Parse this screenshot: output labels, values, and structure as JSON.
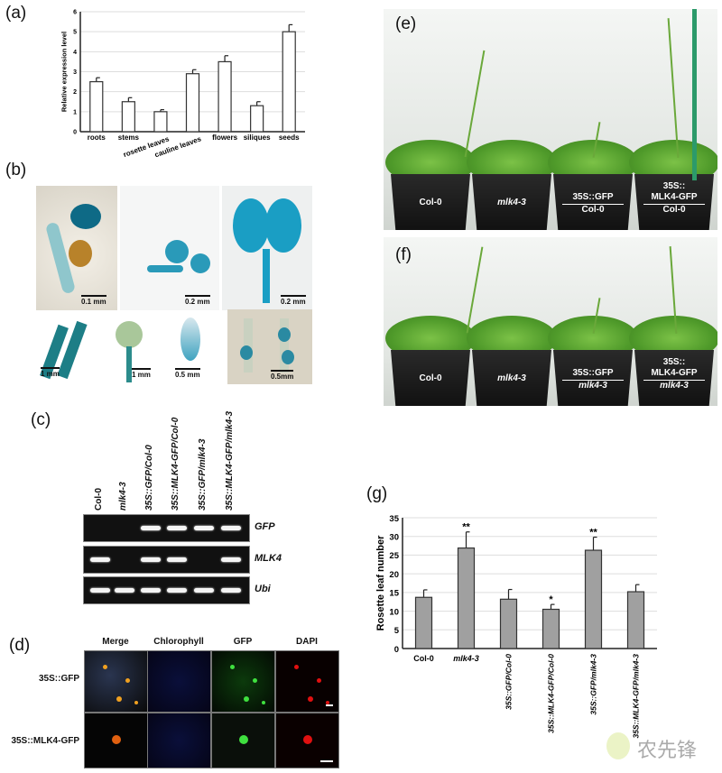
{
  "panels": {
    "a": "(a)",
    "b": "(b)",
    "c": "(c)",
    "d": "(d)",
    "e": "(e)",
    "f": "(f)",
    "g": "(g)"
  },
  "chart_data": [
    {
      "type": "bar",
      "panel": "a",
      "ylabel": "Relative expression level",
      "xlabel": "",
      "categories": [
        "roots",
        "stems",
        "rosette leaves",
        "cauline leaves",
        "flowers",
        "siliques",
        "seeds"
      ],
      "values": [
        2.5,
        1.5,
        1.0,
        2.9,
        3.5,
        1.3,
        5.0
      ],
      "errors": [
        0.2,
        0.2,
        0.1,
        0.2,
        0.3,
        0.2,
        0.35
      ],
      "ylim": [
        0,
        6
      ],
      "yticks": [
        0,
        1,
        2,
        3,
        4,
        5,
        6
      ],
      "grid": true,
      "bar_color": "#ffffff"
    },
    {
      "type": "bar",
      "panel": "g",
      "ylabel": "Rosette leaf number",
      "xlabel": "",
      "categories": [
        "Col-0",
        "mlk4-3",
        "35S::GFP/Col-0",
        "35S::MLK4-GFP/Col-0",
        "35S::GFP/mlk4-3",
        "35S::MLK4-GFP/mlk4-3"
      ],
      "values": [
        13.7,
        26.9,
        13.2,
        10.5,
        26.3,
        15.2
      ],
      "errors": [
        2.0,
        4.3,
        2.6,
        1.3,
        3.5,
        1.9
      ],
      "annotations": [
        "",
        "**",
        "",
        "*",
        "**",
        ""
      ],
      "ylim": [
        0,
        35
      ],
      "yticks": [
        0,
        5,
        10,
        15,
        20,
        25,
        30,
        35
      ],
      "grid": true,
      "bar_color": "#a0a0a0"
    }
  ],
  "b": {
    "scale_bars": [
      "0.1 mm",
      "0.2 mm",
      "0.2 mm",
      "1 mm",
      "1 mm",
      "0.5 mm",
      "0.5mm"
    ]
  },
  "c": {
    "lanes": [
      "Col-0",
      "mlk4-3",
      "35S::GFP/Col-0",
      "35S::MLK4-GFP/Col-0",
      "35S::GFP/mlk4-3",
      "35S::MLK4-GFP/mlk4-3"
    ],
    "genes": [
      "GFP",
      "MLK4",
      "Ubi"
    ],
    "bands": [
      [
        0,
        0,
        1,
        1,
        1,
        1
      ],
      [
        1,
        0,
        1,
        1,
        0,
        1
      ],
      [
        1,
        1,
        1,
        1,
        1,
        1
      ]
    ]
  },
  "d": {
    "columns": [
      "Merge",
      "Chlorophyll",
      "GFP",
      "DAPI"
    ],
    "rows": [
      "35S::GFP",
      "35S::MLK4-GFP"
    ]
  },
  "e": {
    "pots": [
      [
        "Col-0"
      ],
      [
        "mlk4-3"
      ],
      [
        "35S::GFP",
        "Col-0"
      ],
      [
        "35S::",
        "MLK4-GFP",
        "Col-0"
      ]
    ]
  },
  "f": {
    "pots": [
      [
        "Col-0"
      ],
      [
        "mlk4-3"
      ],
      [
        "35S::GFP",
        "mlk4-3"
      ],
      [
        "35S::",
        "MLK4-GFP",
        "mlk4-3"
      ]
    ]
  },
  "watermark": "农先锋"
}
